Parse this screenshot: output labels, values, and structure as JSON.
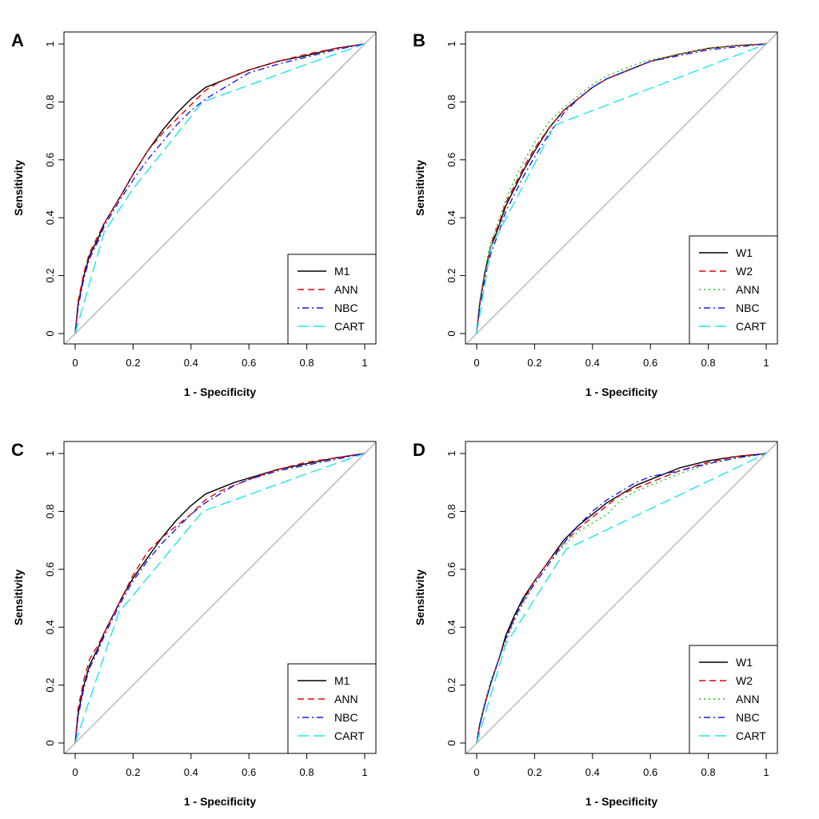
{
  "figure": {
    "description_panels": [
      "A",
      "B",
      "C",
      "D"
    ]
  },
  "chart_data": [
    {
      "type": "line",
      "panel_label": "A",
      "xlabel": "1 - Specificity",
      "ylabel": "Sensitivity",
      "xlim": [
        0,
        1
      ],
      "ylim": [
        0,
        1
      ],
      "x_ticks": [
        0,
        0.2,
        0.4,
        0.6,
        0.8,
        1
      ],
      "x_tick_labels": [
        "0",
        "0.2",
        "0.4",
        "0.6",
        "0.8",
        "1"
      ],
      "y_ticks": [
        0,
        0.2,
        0.4,
        0.6,
        0.8,
        1
      ],
      "y_tick_labels": [
        "0",
        "0.2",
        "0.4",
        "0.6",
        "0.8",
        "1"
      ],
      "legend_position": "bottom-right",
      "reference_line": {
        "x": [
          0,
          1
        ],
        "y": [
          0,
          1
        ],
        "color": "#b0b0b0"
      },
      "series": [
        {
          "name": "M1",
          "color": "#000000",
          "dash": "solid",
          "x": [
            0,
            0.01,
            0.03,
            0.05,
            0.08,
            0.1,
            0.13,
            0.16,
            0.2,
            0.25,
            0.3,
            0.35,
            0.4,
            0.45,
            0.5,
            0.55,
            0.6,
            0.7,
            0.8,
            0.9,
            1
          ],
          "y": [
            0,
            0.1,
            0.2,
            0.27,
            0.33,
            0.38,
            0.43,
            0.48,
            0.55,
            0.63,
            0.7,
            0.76,
            0.81,
            0.85,
            0.87,
            0.89,
            0.91,
            0.94,
            0.96,
            0.985,
            1
          ]
        },
        {
          "name": "ANN",
          "color": "#e8000b",
          "dash": "dashed",
          "x": [
            0,
            0.01,
            0.03,
            0.05,
            0.08,
            0.1,
            0.13,
            0.16,
            0.2,
            0.25,
            0.3,
            0.35,
            0.4,
            0.45,
            0.5,
            0.55,
            0.6,
            0.7,
            0.8,
            0.9,
            1
          ],
          "y": [
            0,
            0.11,
            0.21,
            0.28,
            0.34,
            0.38,
            0.43,
            0.48,
            0.55,
            0.63,
            0.69,
            0.74,
            0.79,
            0.84,
            0.87,
            0.89,
            0.91,
            0.94,
            0.965,
            0.985,
            1
          ]
        },
        {
          "name": "NBC",
          "color": "#1a1ae6",
          "dash": "dashdot",
          "x": [
            0,
            0.01,
            0.03,
            0.05,
            0.08,
            0.1,
            0.13,
            0.16,
            0.2,
            0.25,
            0.3,
            0.35,
            0.4,
            0.45,
            0.5,
            0.55,
            0.6,
            0.7,
            0.8,
            0.9,
            1
          ],
          "y": [
            0,
            0.09,
            0.19,
            0.26,
            0.32,
            0.37,
            0.42,
            0.47,
            0.53,
            0.6,
            0.66,
            0.72,
            0.77,
            0.81,
            0.84,
            0.87,
            0.9,
            0.93,
            0.955,
            0.98,
            1
          ]
        },
        {
          "name": "CART",
          "color": "#1ee5ee",
          "dash": "longdash",
          "x": [
            0,
            0.1,
            0.2,
            0.44,
            0.8,
            1
          ],
          "y": [
            0,
            0.35,
            0.5,
            0.8,
            0.93,
            1
          ]
        }
      ]
    },
    {
      "type": "line",
      "panel_label": "B",
      "xlabel": "1 - Specificity",
      "ylabel": "Sensitivity",
      "xlim": [
        0,
        1
      ],
      "ylim": [
        0,
        1
      ],
      "x_ticks": [
        0,
        0.2,
        0.4,
        0.6,
        0.8,
        1
      ],
      "x_tick_labels": [
        "0",
        "0.2",
        "0.4",
        "0.6",
        "0.8",
        "1"
      ],
      "y_ticks": [
        0,
        0.2,
        0.4,
        0.6,
        0.8,
        1
      ],
      "y_tick_labels": [
        "0",
        "0.2",
        "0.4",
        "0.6",
        "0.8",
        "1"
      ],
      "legend_position": "bottom-right",
      "reference_line": {
        "x": [
          0,
          1
        ],
        "y": [
          0,
          1
        ],
        "color": "#b0b0b0"
      },
      "series": [
        {
          "name": "W1",
          "color": "#000000",
          "dash": "solid",
          "x": [
            0,
            0.01,
            0.03,
            0.05,
            0.08,
            0.1,
            0.13,
            0.16,
            0.2,
            0.25,
            0.3,
            0.35,
            0.4,
            0.45,
            0.5,
            0.55,
            0.6,
            0.7,
            0.8,
            0.9,
            1
          ],
          "y": [
            0,
            0.1,
            0.22,
            0.3,
            0.38,
            0.44,
            0.5,
            0.56,
            0.63,
            0.71,
            0.77,
            0.81,
            0.85,
            0.88,
            0.9,
            0.92,
            0.94,
            0.965,
            0.985,
            0.995,
            1
          ]
        },
        {
          "name": "W2",
          "color": "#e8000b",
          "dash": "dashed",
          "x": [
            0,
            0.01,
            0.03,
            0.05,
            0.08,
            0.1,
            0.13,
            0.16,
            0.2,
            0.25,
            0.3,
            0.35,
            0.4,
            0.45,
            0.5,
            0.55,
            0.6,
            0.7,
            0.8,
            0.9,
            1
          ],
          "y": [
            0,
            0.1,
            0.22,
            0.31,
            0.39,
            0.45,
            0.51,
            0.57,
            0.64,
            0.71,
            0.77,
            0.81,
            0.85,
            0.88,
            0.9,
            0.92,
            0.94,
            0.965,
            0.985,
            0.995,
            1
          ]
        },
        {
          "name": "ANN",
          "color": "#1fc41f",
          "dash": "dotted",
          "x": [
            0,
            0.01,
            0.03,
            0.05,
            0.08,
            0.1,
            0.13,
            0.16,
            0.2,
            0.25,
            0.3,
            0.35,
            0.4,
            0.45,
            0.5,
            0.55,
            0.6,
            0.7,
            0.8,
            0.9,
            1
          ],
          "y": [
            0,
            0.11,
            0.23,
            0.32,
            0.4,
            0.46,
            0.53,
            0.59,
            0.66,
            0.73,
            0.78,
            0.82,
            0.86,
            0.89,
            0.91,
            0.93,
            0.945,
            0.965,
            0.985,
            0.995,
            1
          ]
        },
        {
          "name": "NBC",
          "color": "#1a1ae6",
          "dash": "dashdot",
          "x": [
            0,
            0.01,
            0.03,
            0.05,
            0.08,
            0.1,
            0.13,
            0.16,
            0.2,
            0.25,
            0.3,
            0.35,
            0.4,
            0.45,
            0.5,
            0.55,
            0.6,
            0.7,
            0.8,
            0.9,
            1
          ],
          "y": [
            0,
            0.09,
            0.2,
            0.28,
            0.36,
            0.42,
            0.48,
            0.54,
            0.61,
            0.69,
            0.76,
            0.81,
            0.85,
            0.88,
            0.9,
            0.92,
            0.94,
            0.96,
            0.98,
            0.99,
            1
          ]
        },
        {
          "name": "CART",
          "color": "#1ee5ee",
          "dash": "longdash",
          "x": [
            0,
            0.05,
            0.27,
            1
          ],
          "y": [
            0,
            0.3,
            0.72,
            1
          ]
        }
      ]
    },
    {
      "type": "line",
      "panel_label": "C",
      "xlabel": "1 - Specificity",
      "ylabel": "Sensitivity",
      "xlim": [
        0,
        1
      ],
      "ylim": [
        0,
        1
      ],
      "x_ticks": [
        0,
        0.2,
        0.4,
        0.6,
        0.8,
        1
      ],
      "x_tick_labels": [
        "0",
        "0.2",
        "0.4",
        "0.6",
        "0.8",
        "1"
      ],
      "y_ticks": [
        0,
        0.2,
        0.4,
        0.6,
        0.8,
        1
      ],
      "y_tick_labels": [
        "0",
        "0.2",
        "0.4",
        "0.6",
        "0.8",
        "1"
      ],
      "legend_position": "bottom-right",
      "reference_line": {
        "x": [
          0,
          1
        ],
        "y": [
          0,
          1
        ],
        "color": "#b0b0b0"
      },
      "series": [
        {
          "name": "M1",
          "color": "#000000",
          "dash": "solid",
          "x": [
            0,
            0.01,
            0.03,
            0.05,
            0.08,
            0.1,
            0.13,
            0.16,
            0.2,
            0.25,
            0.3,
            0.35,
            0.4,
            0.45,
            0.5,
            0.55,
            0.6,
            0.7,
            0.8,
            0.9,
            1
          ],
          "y": [
            0,
            0.1,
            0.2,
            0.27,
            0.33,
            0.38,
            0.44,
            0.5,
            0.57,
            0.64,
            0.71,
            0.77,
            0.82,
            0.86,
            0.88,
            0.9,
            0.915,
            0.945,
            0.965,
            0.985,
            1
          ]
        },
        {
          "name": "ANN",
          "color": "#e8000b",
          "dash": "dashed",
          "x": [
            0,
            0.01,
            0.03,
            0.05,
            0.08,
            0.1,
            0.13,
            0.16,
            0.2,
            0.25,
            0.3,
            0.35,
            0.4,
            0.45,
            0.5,
            0.55,
            0.6,
            0.7,
            0.8,
            0.9,
            1
          ],
          "y": [
            0,
            0.12,
            0.22,
            0.29,
            0.34,
            0.38,
            0.44,
            0.5,
            0.58,
            0.66,
            0.71,
            0.75,
            0.79,
            0.84,
            0.87,
            0.89,
            0.91,
            0.945,
            0.97,
            0.985,
            1
          ]
        },
        {
          "name": "NBC",
          "color": "#1a1ae6",
          "dash": "dashdot",
          "x": [
            0,
            0.01,
            0.03,
            0.05,
            0.08,
            0.1,
            0.13,
            0.16,
            0.2,
            0.25,
            0.3,
            0.35,
            0.4,
            0.45,
            0.5,
            0.55,
            0.6,
            0.7,
            0.8,
            0.9,
            1
          ],
          "y": [
            0,
            0.09,
            0.19,
            0.26,
            0.32,
            0.37,
            0.43,
            0.49,
            0.56,
            0.63,
            0.69,
            0.74,
            0.79,
            0.83,
            0.86,
            0.89,
            0.91,
            0.94,
            0.96,
            0.98,
            1
          ]
        },
        {
          "name": "CART",
          "color": "#1ee5ee",
          "dash": "longdash",
          "x": [
            0,
            0.15,
            0.44,
            0.8,
            1
          ],
          "y": [
            0,
            0.45,
            0.8,
            0.93,
            1
          ]
        }
      ]
    },
    {
      "type": "line",
      "panel_label": "D",
      "xlabel": "1 - Specificity",
      "ylabel": "Sensitivity",
      "xlim": [
        0,
        1
      ],
      "ylim": [
        0,
        1
      ],
      "x_ticks": [
        0,
        0.2,
        0.4,
        0.6,
        0.8,
        1
      ],
      "x_tick_labels": [
        "0",
        "0.2",
        "0.4",
        "0.6",
        "0.8",
        "1"
      ],
      "y_ticks": [
        0,
        0.2,
        0.4,
        0.6,
        0.8,
        1
      ],
      "y_tick_labels": [
        "0",
        "0.2",
        "0.4",
        "0.6",
        "0.8",
        "1"
      ],
      "legend_position": "bottom-right",
      "reference_line": {
        "x": [
          0,
          1
        ],
        "y": [
          0,
          1
        ],
        "color": "#b0b0b0"
      },
      "series": [
        {
          "name": "W1",
          "color": "#000000",
          "dash": "solid",
          "x": [
            0,
            0.01,
            0.03,
            0.05,
            0.08,
            0.1,
            0.13,
            0.16,
            0.2,
            0.25,
            0.3,
            0.35,
            0.4,
            0.45,
            0.5,
            0.55,
            0.6,
            0.7,
            0.8,
            0.9,
            1
          ],
          "y": [
            0,
            0.06,
            0.14,
            0.21,
            0.3,
            0.37,
            0.44,
            0.5,
            0.56,
            0.63,
            0.7,
            0.75,
            0.79,
            0.83,
            0.86,
            0.89,
            0.91,
            0.95,
            0.975,
            0.99,
            1
          ]
        },
        {
          "name": "W2",
          "color": "#e8000b",
          "dash": "dashed",
          "x": [
            0,
            0.01,
            0.03,
            0.05,
            0.08,
            0.1,
            0.13,
            0.16,
            0.2,
            0.25,
            0.3,
            0.35,
            0.4,
            0.45,
            0.5,
            0.55,
            0.6,
            0.7,
            0.8,
            0.9,
            1
          ],
          "y": [
            0,
            0.06,
            0.14,
            0.21,
            0.3,
            0.36,
            0.43,
            0.49,
            0.56,
            0.63,
            0.69,
            0.74,
            0.78,
            0.82,
            0.86,
            0.88,
            0.9,
            0.94,
            0.97,
            0.99,
            1
          ]
        },
        {
          "name": "ANN",
          "color": "#1fc41f",
          "dash": "dotted",
          "x": [
            0,
            0.01,
            0.03,
            0.05,
            0.08,
            0.1,
            0.13,
            0.16,
            0.2,
            0.25,
            0.3,
            0.35,
            0.4,
            0.45,
            0.5,
            0.55,
            0.6,
            0.7,
            0.8,
            0.9,
            1
          ],
          "y": [
            0,
            0.07,
            0.15,
            0.22,
            0.3,
            0.35,
            0.42,
            0.48,
            0.55,
            0.62,
            0.68,
            0.73,
            0.76,
            0.79,
            0.84,
            0.87,
            0.89,
            0.93,
            0.965,
            0.985,
            1
          ]
        },
        {
          "name": "NBC",
          "color": "#1a1ae6",
          "dash": "dashdot",
          "x": [
            0,
            0.01,
            0.03,
            0.05,
            0.08,
            0.1,
            0.13,
            0.16,
            0.2,
            0.25,
            0.3,
            0.35,
            0.4,
            0.45,
            0.5,
            0.55,
            0.6,
            0.7,
            0.8,
            0.9,
            1
          ],
          "y": [
            0,
            0.06,
            0.14,
            0.21,
            0.3,
            0.36,
            0.43,
            0.49,
            0.55,
            0.62,
            0.69,
            0.75,
            0.8,
            0.84,
            0.87,
            0.9,
            0.92,
            0.94,
            0.965,
            0.985,
            1
          ]
        },
        {
          "name": "CART",
          "color": "#1ee5ee",
          "dash": "longdash",
          "x": [
            0,
            0.1,
            0.31,
            1
          ],
          "y": [
            0,
            0.34,
            0.67,
            1
          ]
        }
      ]
    }
  ]
}
